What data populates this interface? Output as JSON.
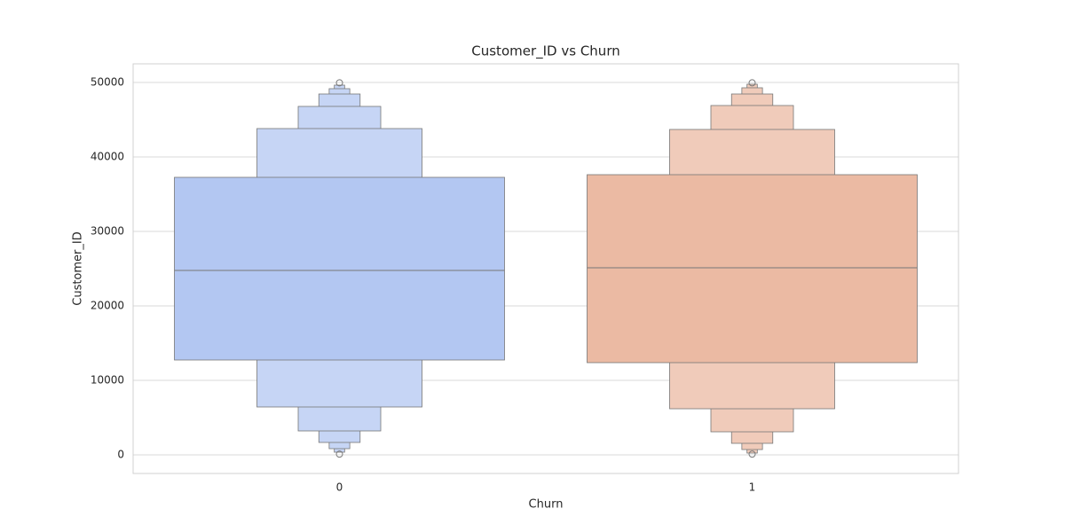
{
  "chart_data": {
    "type": "boxen",
    "title": "Customer_ID vs Churn",
    "x_label": "Churn",
    "y_label": "Customer_ID",
    "categories": [
      "0",
      "1"
    ],
    "colors": [
      "#b3c7f2",
      "#ebbaa3"
    ],
    "medians": [
      24762,
      25119
    ],
    "boxes": [
      [
        [
          12738,
          37262
        ],
        [
          6429,
          43810
        ],
        [
          3214,
          46786
        ],
        [
          1667,
          48452
        ],
        [
          833,
          49167
        ],
        [
          357,
          49643
        ]
      ],
      [
        [
          12381,
          37619
        ],
        [
          6190,
          43690
        ],
        [
          3095,
          46905
        ],
        [
          1548,
          48452
        ],
        [
          714,
          49286
        ],
        [
          238,
          49762
        ]
      ]
    ],
    "outliers": [
      [
        100,
        49950
      ],
      [
        100,
        49950
      ]
    ],
    "ylim": [
      -2500,
      52500
    ],
    "yticks": [
      0,
      10000,
      20000,
      30000,
      40000,
      50000
    ],
    "grid": true
  }
}
